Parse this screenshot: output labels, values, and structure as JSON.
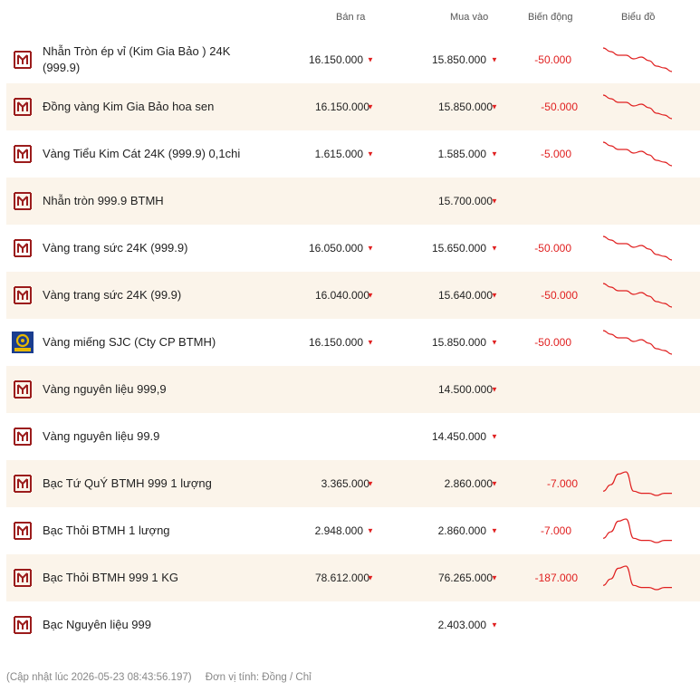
{
  "header": {
    "sell_label": "Bán ra",
    "buy_label": "Mua vào",
    "change_label": "Biến động",
    "chart_label": "Biểu đồ"
  },
  "colors": {
    "down": "#e02020",
    "brand": "#9b1c1c",
    "alt_row": "#fbf4ea",
    "sjc_blue": "#1a3d8f",
    "sjc_gold": "#e6b800"
  },
  "rows": [
    {
      "name": "Nhẫn Tròn ép vỉ (Kim Gia Bảo ) 24K (999.9)",
      "sell": "16.150.000",
      "buy": "15.850.000",
      "change": "-50.000",
      "logo": "btmh-logo-icon",
      "trend": "down",
      "spark": [
        60,
        58,
        56,
        56,
        54,
        55,
        53,
        50,
        49,
        47
      ]
    },
    {
      "name": "Đồng vàng Kim Gia Bảo hoa sen",
      "sell": "16.150.000",
      "buy": "15.850.000",
      "change": "-50.000",
      "logo": "btmh-logo-icon",
      "trend": "down",
      "spark": [
        60,
        58,
        56,
        56,
        54,
        55,
        53,
        50,
        49,
        47
      ]
    },
    {
      "name": "Vàng Tiểu Kim Cát 24K (999.9) 0,1chi",
      "sell": "1.615.000",
      "buy": "1.585.000",
      "change": "-5.000",
      "logo": "btmh-logo-icon",
      "trend": "down",
      "spark": [
        60,
        58,
        56,
        56,
        54,
        55,
        53,
        50,
        49,
        47
      ]
    },
    {
      "name": "Nhẫn tròn 999.9 BTMH",
      "sell": "",
      "buy": "15.700.000",
      "change": "",
      "logo": "btmh-logo-icon",
      "trend": "none",
      "spark": []
    },
    {
      "name": "Vàng trang sức 24K (999.9)",
      "sell": "16.050.000",
      "buy": "15.650.000",
      "change": "-50.000",
      "logo": "btmh-logo-icon",
      "trend": "down",
      "spark": [
        60,
        58,
        56,
        56,
        54,
        55,
        53,
        50,
        49,
        47
      ]
    },
    {
      "name": "Vàng trang sức 24K (99.9)",
      "sell": "16.040.000",
      "buy": "15.640.000",
      "change": "-50.000",
      "logo": "btmh-logo-icon",
      "trend": "down",
      "spark": [
        60,
        58,
        56,
        56,
        54,
        55,
        53,
        50,
        49,
        47
      ]
    },
    {
      "name": "Vàng miếng SJC (Cty CP BTMH)",
      "sell": "16.150.000",
      "buy": "15.850.000",
      "change": "-50.000",
      "logo": "sjc-logo-icon",
      "trend": "down",
      "spark": [
        60,
        58,
        56,
        56,
        54,
        55,
        53,
        50,
        49,
        47
      ]
    },
    {
      "name": "Vàng nguyên liệu 999,9",
      "sell": "",
      "buy": "14.500.000",
      "change": "",
      "logo": "btmh-logo-icon",
      "trend": "none",
      "spark": []
    },
    {
      "name": "Vàng nguyên liệu 99.9",
      "sell": "",
      "buy": "14.450.000",
      "change": "",
      "logo": "btmh-logo-icon",
      "trend": "none",
      "spark": []
    },
    {
      "name": "Bạc Tứ QuÝ BTMH 999 1 lượng",
      "sell": "3.365.000",
      "buy": "2.860.000",
      "change": "-7.000",
      "logo": "btmh-logo-icon",
      "trend": "down",
      "spark": [
        40,
        43,
        48,
        49,
        40,
        39,
        39,
        38,
        39,
        39
      ]
    },
    {
      "name": "Bạc Thỏi BTMH 1 lượng",
      "sell": "2.948.000",
      "buy": "2.860.000",
      "change": "-7.000",
      "logo": "btmh-logo-icon",
      "trend": "down",
      "spark": [
        40,
        43,
        48,
        49,
        40,
        39,
        39,
        38,
        39,
        39
      ]
    },
    {
      "name": "Bạc Thỏi BTMH 999 1 KG",
      "sell": "78.612.000",
      "buy": "76.265.000",
      "change": "-187.000",
      "logo": "btmh-logo-icon",
      "trend": "down",
      "spark": [
        40,
        43,
        48,
        49,
        40,
        39,
        39,
        38,
        39,
        39
      ]
    },
    {
      "name": "Bạc Nguyên liệu 999",
      "sell": "",
      "buy": "2.403.000",
      "change": "",
      "logo": "btmh-logo-icon",
      "trend": "none",
      "spark": []
    }
  ],
  "footer": {
    "updated": "(Cập nhật lúc 2026-05-23 08:43:56.197)",
    "unit": "Đơn vị tính: Đồng / Chỉ"
  }
}
